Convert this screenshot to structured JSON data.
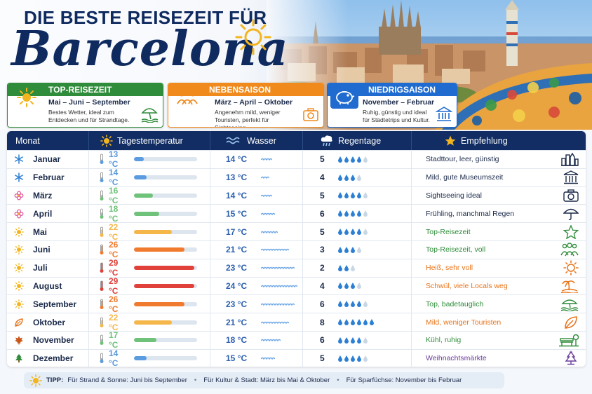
{
  "header": {
    "title_top": "DIE BESTE REISEZEIT FÜR",
    "title_city": "Barcelona"
  },
  "seasons": [
    {
      "title": "TOP-REISEZEIT",
      "months": "Mai – Juni – September",
      "desc": "Bestes Wetter, ideal zum Entdecken und für Strandtage.",
      "color": "#2f8c3a",
      "border": "#2f8c3a",
      "icon": "sun-icon",
      "corner_icon": "beach-umbrella-icon"
    },
    {
      "title": "NEBENSAISON",
      "months": "März – April – Oktober",
      "desc": "Angenehm mild, weniger Touristen, perfekt für Sightseeing.",
      "color": "#f08a1c",
      "border": "#f08a1c",
      "icon": "people-icon",
      "corner_icon": "camera-icon"
    },
    {
      "title": "NIEDRIGSAISON",
      "months": "November – Februar",
      "desc": "Ruhig, günstig und ideal für Städtetrips und Kultur.",
      "color": "#1f6bd0",
      "border": "#1f6bd0",
      "icon": "piggy-bank-icon",
      "corner_icon": "museum-icon"
    }
  ],
  "table": {
    "headers": [
      "Monat",
      "Tagestemperatur",
      "Wasser",
      "Regentage",
      "Empfehlung"
    ],
    "rows": [
      {
        "month": "Januar",
        "icon": "snowflake-icon",
        "temp": "13 °C",
        "temp_c": 13,
        "water": "14 °C",
        "water_c": 14,
        "rain": "5",
        "rain_days": 5,
        "drops": 4,
        "rec": "Stadttour, leer, günstig",
        "rec_color": "#1b2a4a",
        "rec_icon": "city-icon"
      },
      {
        "month": "Februar",
        "icon": "snowflake-icon",
        "temp": "14 °C",
        "temp_c": 14,
        "water": "13 °C",
        "water_c": 13,
        "rain": "4",
        "rain_days": 4,
        "drops": 3,
        "rec": "Mild, gute Museumszeit",
        "rec_color": "#1b2a4a",
        "rec_icon": "museum-icon"
      },
      {
        "month": "März",
        "icon": "flower-icon",
        "temp": "16 °C",
        "temp_c": 16,
        "water": "14 °C",
        "water_c": 14,
        "rain": "5",
        "rain_days": 5,
        "drops": 4,
        "rec": "Sightseeing ideal",
        "rec_color": "#1b2a4a",
        "rec_icon": "camera-icon"
      },
      {
        "month": "April",
        "icon": "flower-icon",
        "temp": "18 °C",
        "temp_c": 18,
        "water": "15 °C",
        "water_c": 15,
        "rain": "6",
        "rain_days": 6,
        "drops": 4,
        "rec": "Frühling, manchmal Regen",
        "rec_color": "#1b2a4a",
        "rec_icon": "umbrella-icon"
      },
      {
        "month": "Mai",
        "icon": "sun-icon",
        "temp": "22 °C",
        "temp_c": 22,
        "water": "17 °C",
        "water_c": 17,
        "rain": "5",
        "rain_days": 5,
        "drops": 4,
        "rec": "Top-Reisezeit",
        "rec_color": "#2f8c3a",
        "rec_icon": "star-icon"
      },
      {
        "month": "Juni",
        "icon": "sun-icon",
        "temp": "26 °C",
        "temp_c": 26,
        "water": "21 °C",
        "water_c": 21,
        "rain": "3",
        "rain_days": 3,
        "drops": 3,
        "rec": "Top-Reisezeit, voll",
        "rec_color": "#2f8c3a",
        "rec_icon": "people-icon"
      },
      {
        "month": "Juli",
        "icon": "sun-icon",
        "temp": "29 °C",
        "temp_c": 29,
        "water": "23 °C",
        "water_c": 23,
        "rain": "2",
        "rain_days": 2,
        "drops": 2,
        "rec": "Heiß, sehr voll",
        "rec_color": "#e8741a",
        "rec_icon": "hot-sun-icon"
      },
      {
        "month": "August",
        "icon": "sun-icon",
        "temp": "29 °C",
        "temp_c": 29,
        "water": "24 °C",
        "water_c": 24,
        "rain": "4",
        "rain_days": 4,
        "drops": 3,
        "rec": "Schwül, viele Locals weg",
        "rec_color": "#e8741a",
        "rec_icon": "palm-island-icon"
      },
      {
        "month": "September",
        "icon": "sun-icon",
        "temp": "26 °C",
        "temp_c": 26,
        "water": "23 °C",
        "water_c": 23,
        "rain": "6",
        "rain_days": 6,
        "drops": 4,
        "rec": "Top, badetauglich",
        "rec_color": "#2f8c3a",
        "rec_icon": "beach-umbrella-icon"
      },
      {
        "month": "Oktober",
        "icon": "leaf-icon",
        "temp": "22 °C",
        "temp_c": 22,
        "water": "21 °C",
        "water_c": 21,
        "rain": "8",
        "rain_days": 8,
        "drops": 6,
        "rec": "Mild, weniger Touristen",
        "rec_color": "#e8741a",
        "rec_icon": "leaf-icon"
      },
      {
        "month": "November",
        "icon": "maple-leaf-icon",
        "temp": "17 °C",
        "temp_c": 17,
        "water": "18 °C",
        "water_c": 18,
        "rain": "6",
        "rain_days": 6,
        "drops": 4,
        "rec": "Kühl, ruhig",
        "rec_color": "#2f8c3a",
        "rec_icon": "bench-icon"
      },
      {
        "month": "Dezember",
        "icon": "tree-icon",
        "temp": "14 °C",
        "temp_c": 14,
        "water": "15 °C",
        "water_c": 15,
        "rain": "5",
        "rain_days": 5,
        "drops": 4,
        "rec": "Weihnachtsmärkte",
        "rec_color": "#6a3d9a",
        "rec_icon": "christmas-tree-icon"
      }
    ]
  },
  "tip": {
    "label": "TIPP:",
    "items": [
      {
        "key": "Für Strand & Sonne:",
        "value": "Juni bis September"
      },
      {
        "key": "Für Kultur & Stadt:",
        "value": "März bis Mai & Oktober"
      },
      {
        "key": "Für Sparfüchse:",
        "value": "November bis Februar"
      }
    ]
  }
}
